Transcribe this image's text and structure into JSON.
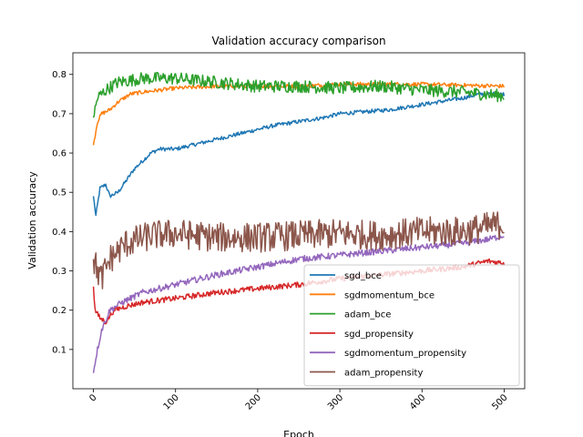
{
  "chart_data": {
    "type": "line",
    "title": "Validation accuracy comparison",
    "xlabel": "Epoch",
    "ylabel": "Validation accuracy",
    "xlim": [
      -25,
      525
    ],
    "ylim": [
      0.0,
      0.855
    ],
    "xticks": [
      0,
      100,
      200,
      300,
      400,
      500
    ],
    "yticks": [
      0.1,
      0.2,
      0.3,
      0.4,
      0.5,
      0.6,
      0.7,
      0.8
    ],
    "ytick_labels": [
      "0.1",
      "0.2",
      "0.3",
      "0.4",
      "0.5",
      "0.6",
      "0.7",
      "0.8"
    ],
    "grid": false,
    "legend_position": "lower right",
    "series": [
      {
        "name": "sgd_bce",
        "color": "#1f77b4",
        "points": [
          [
            0,
            0.49
          ],
          [
            3,
            0.44
          ],
          [
            8,
            0.51
          ],
          [
            15,
            0.52
          ],
          [
            20,
            0.49
          ],
          [
            30,
            0.5
          ],
          [
            40,
            0.53
          ],
          [
            50,
            0.56
          ],
          [
            60,
            0.58
          ],
          [
            70,
            0.6
          ],
          [
            80,
            0.61
          ],
          [
            100,
            0.61
          ],
          [
            120,
            0.62
          ],
          [
            140,
            0.63
          ],
          [
            160,
            0.64
          ],
          [
            180,
            0.65
          ],
          [
            200,
            0.66
          ],
          [
            220,
            0.67
          ],
          [
            250,
            0.68
          ],
          [
            280,
            0.69
          ],
          [
            300,
            0.7
          ],
          [
            330,
            0.705
          ],
          [
            360,
            0.71
          ],
          [
            390,
            0.72
          ],
          [
            420,
            0.73
          ],
          [
            450,
            0.74
          ],
          [
            470,
            0.75
          ],
          [
            490,
            0.75
          ],
          [
            500,
            0.75
          ]
        ],
        "noise": 0.005
      },
      {
        "name": "sgdmomentum_bce",
        "color": "#ff7f0e",
        "points": [
          [
            0,
            0.62
          ],
          [
            5,
            0.68
          ],
          [
            10,
            0.7
          ],
          [
            20,
            0.71
          ],
          [
            30,
            0.73
          ],
          [
            45,
            0.75
          ],
          [
            60,
            0.755
          ],
          [
            80,
            0.76
          ],
          [
            100,
            0.765
          ],
          [
            150,
            0.77
          ],
          [
            200,
            0.77
          ],
          [
            250,
            0.77
          ],
          [
            300,
            0.775
          ],
          [
            400,
            0.775
          ],
          [
            500,
            0.77
          ]
        ],
        "noise": 0.005
      },
      {
        "name": "adam_bce",
        "color": "#2ca02c",
        "points": [
          [
            0,
            0.69
          ],
          [
            5,
            0.74
          ],
          [
            15,
            0.76
          ],
          [
            30,
            0.78
          ],
          [
            60,
            0.79
          ],
          [
            100,
            0.79
          ],
          [
            150,
            0.78
          ],
          [
            200,
            0.77
          ],
          [
            250,
            0.77
          ],
          [
            300,
            0.765
          ],
          [
            350,
            0.77
          ],
          [
            400,
            0.76
          ],
          [
            450,
            0.755
          ],
          [
            500,
            0.745
          ]
        ],
        "noise": 0.016
      },
      {
        "name": "sgd_propensity",
        "color": "#d62728",
        "points": [
          [
            0,
            0.26
          ],
          [
            2,
            0.2
          ],
          [
            8,
            0.18
          ],
          [
            15,
            0.17
          ],
          [
            25,
            0.2
          ],
          [
            40,
            0.21
          ],
          [
            60,
            0.22
          ],
          [
            100,
            0.23
          ],
          [
            150,
            0.245
          ],
          [
            200,
            0.255
          ],
          [
            250,
            0.265
          ],
          [
            300,
            0.28
          ],
          [
            350,
            0.29
          ],
          [
            400,
            0.3
          ],
          [
            450,
            0.31
          ],
          [
            480,
            0.325
          ],
          [
            500,
            0.32
          ]
        ],
        "noise": 0.007
      },
      {
        "name": "sgdmomentum_propensity",
        "color": "#9467bd",
        "points": [
          [
            0,
            0.04
          ],
          [
            3,
            0.08
          ],
          [
            10,
            0.15
          ],
          [
            20,
            0.2
          ],
          [
            35,
            0.22
          ],
          [
            60,
            0.245
          ],
          [
            100,
            0.265
          ],
          [
            150,
            0.29
          ],
          [
            200,
            0.31
          ],
          [
            250,
            0.33
          ],
          [
            300,
            0.34
          ],
          [
            350,
            0.35
          ],
          [
            400,
            0.36
          ],
          [
            450,
            0.37
          ],
          [
            480,
            0.38
          ],
          [
            500,
            0.39
          ]
        ],
        "noise": 0.008
      },
      {
        "name": "adam_propensity",
        "color": "#8c564b",
        "points": [
          [
            0,
            0.33
          ],
          [
            5,
            0.3
          ],
          [
            10,
            0.28
          ],
          [
            20,
            0.33
          ],
          [
            40,
            0.37
          ],
          [
            70,
            0.39
          ],
          [
            100,
            0.395
          ],
          [
            150,
            0.385
          ],
          [
            200,
            0.385
          ],
          [
            250,
            0.39
          ],
          [
            300,
            0.395
          ],
          [
            350,
            0.39
          ],
          [
            400,
            0.4
          ],
          [
            450,
            0.4
          ],
          [
            500,
            0.42
          ]
        ],
        "noise": 0.038
      }
    ]
  }
}
